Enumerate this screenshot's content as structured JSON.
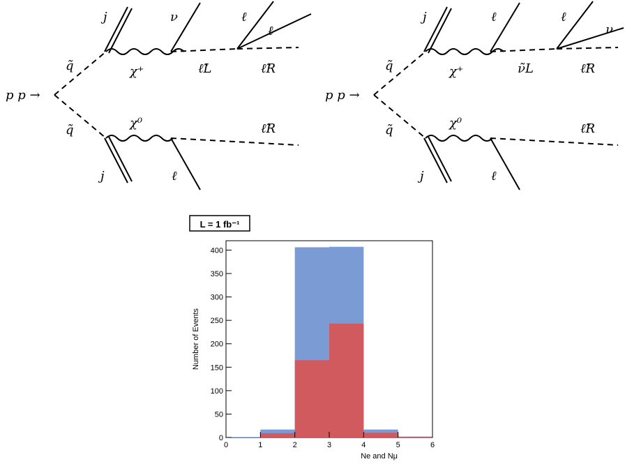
{
  "diagram_left": {
    "initial": "p p →",
    "squark_top": "q̃",
    "squark_bottom": "q̃",
    "jet_top": "j",
    "jet_bottom": "j",
    "chargino": "χ⁺",
    "neutralino": "χ⁰",
    "top_out_upper": "ν",
    "slepton_mid": "ℓ̃L",
    "splitter_out_1": "ℓ",
    "splitter_out_2": "ℓ",
    "slepton_top_end": "ℓ̃R",
    "slepton_bottom_end": "ℓ̃R",
    "lepton_bottom": "ℓ"
  },
  "diagram_right": {
    "initial": "p p →",
    "squark_top": "q̃",
    "squark_bottom": "q̃",
    "jet_top": "j",
    "jet_bottom": "j",
    "chargino": "χ⁺",
    "neutralino": "χ⁰",
    "top_out_upper": "ℓ",
    "slepton_mid": "ν̃L",
    "splitter_out_1": "ℓ",
    "splitter_out_2": "ν",
    "slepton_top_end": "ℓ̃R",
    "slepton_bottom_end": "ℓ̃R",
    "lepton_bottom": "ℓ"
  },
  "chart_data": {
    "type": "bar",
    "histogram": true,
    "title": "L = 1 fb⁻¹",
    "xlabel": "Ne and Nμ",
    "ylabel": "Number of Events",
    "xlim": [
      0,
      6
    ],
    "ylim": [
      0,
      420
    ],
    "xticks": [
      0,
      1,
      2,
      3,
      4,
      5,
      6
    ],
    "yticks": [
      0,
      50,
      100,
      150,
      200,
      250,
      300,
      350,
      400
    ],
    "bins": [
      [
        0,
        1
      ],
      [
        1,
        2
      ],
      [
        2,
        3
      ],
      [
        3,
        4
      ],
      [
        4,
        5
      ],
      [
        5,
        6
      ]
    ],
    "series": [
      {
        "color": "#7b9bd4",
        "values": [
          1,
          17,
          406,
          407,
          17,
          2
        ]
      },
      {
        "color": "#d05a5e",
        "values": [
          0,
          9,
          165,
          243,
          10,
          1
        ]
      }
    ],
    "grid": false
  }
}
